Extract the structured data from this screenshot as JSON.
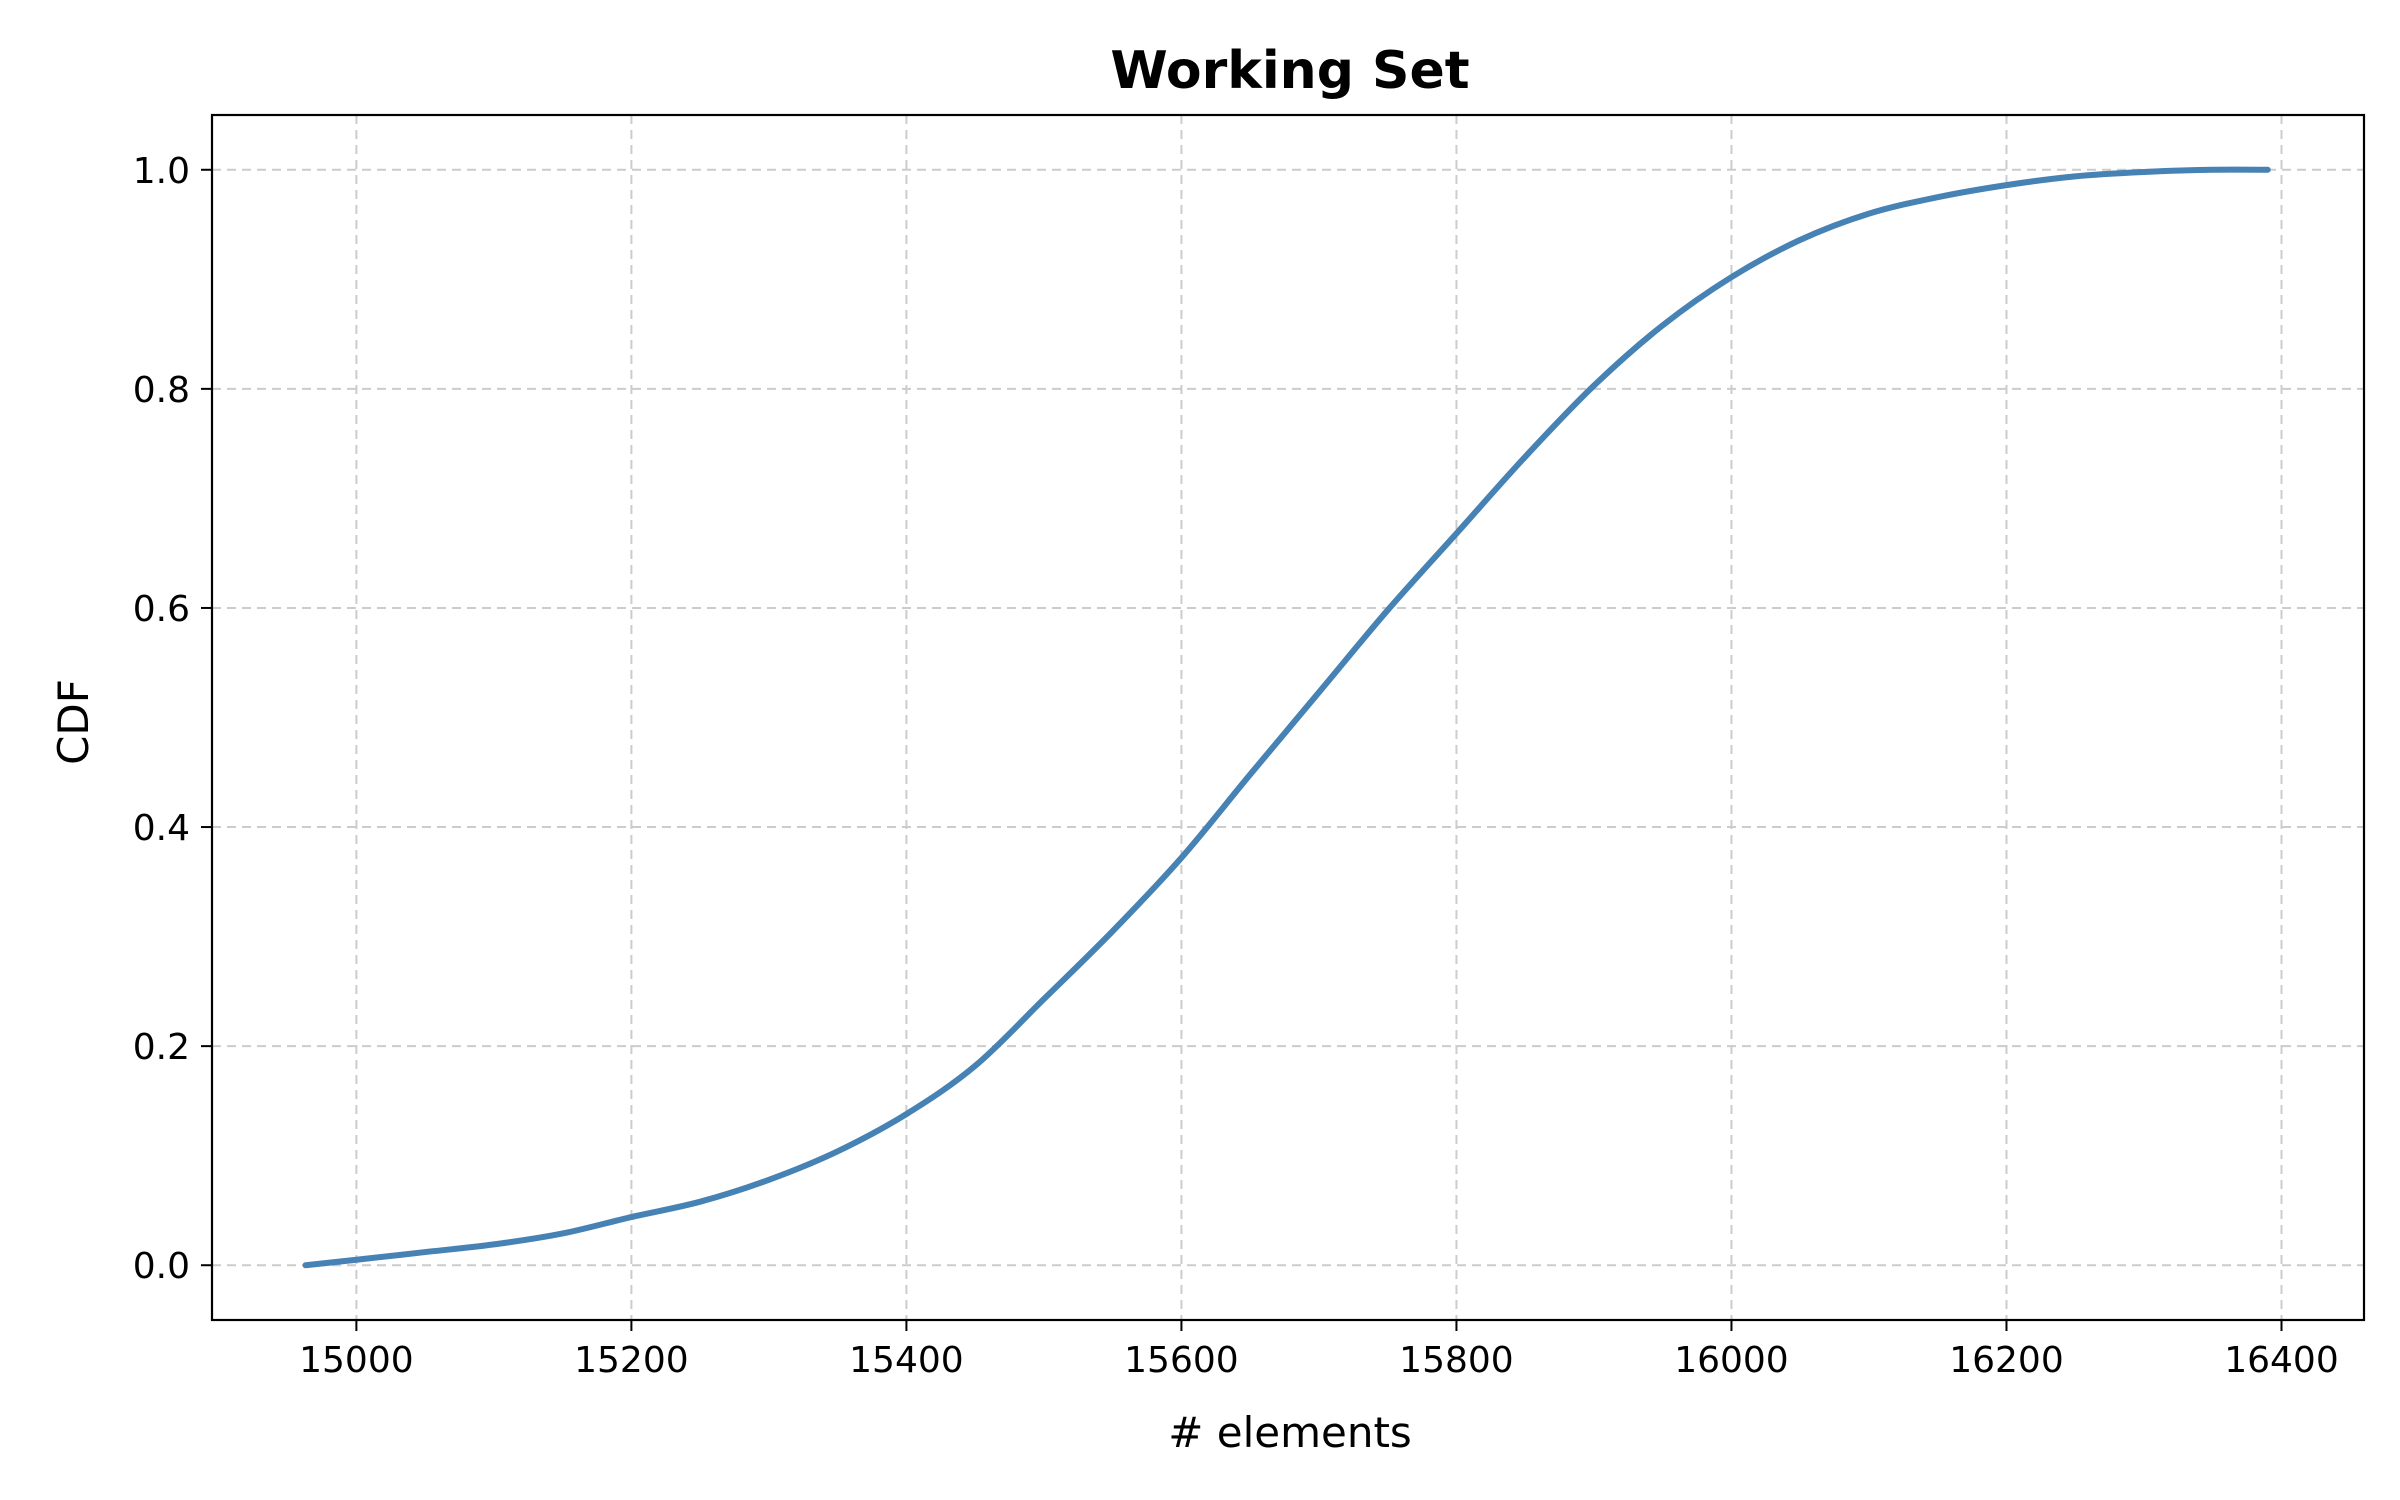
{
  "chart_data": {
    "type": "line",
    "title": "Working Set",
    "xlabel": "# elements",
    "ylabel": "CDF",
    "xlim": [
      14895,
      16460
    ],
    "ylim": [
      -0.05,
      1.05
    ],
    "xticks": [
      15000,
      15200,
      15400,
      15600,
      15800,
      16000,
      16200,
      16400
    ],
    "yticks": [
      0.0,
      0.2,
      0.4,
      0.6,
      0.8,
      1.0
    ],
    "xtick_labels": [
      "15000",
      "15200",
      "15400",
      "15600",
      "15800",
      "16000",
      "16200",
      "16400"
    ],
    "ytick_labels": [
      "0.0",
      "0.2",
      "0.4",
      "0.6",
      "0.8",
      "1.0"
    ],
    "grid": true,
    "series": [
      {
        "color": "#4682b4",
        "x": [
          14963,
          15000,
          15050,
          15100,
          15150,
          15200,
          15250,
          15300,
          15350,
          15400,
          15450,
          15500,
          15550,
          15600,
          15650,
          15700,
          15750,
          15800,
          15850,
          15900,
          15950,
          16000,
          16050,
          16100,
          16150,
          16200,
          16250,
          16300,
          16350,
          16390
        ],
        "y": [
          0.0,
          0.005,
          0.012,
          0.019,
          0.029,
          0.044,
          0.058,
          0.078,
          0.104,
          0.138,
          0.182,
          0.243,
          0.305,
          0.372,
          0.448,
          0.523,
          0.598,
          0.668,
          0.738,
          0.803,
          0.858,
          0.902,
          0.936,
          0.96,
          0.975,
          0.986,
          0.994,
          0.998,
          1.0,
          1.0
        ]
      }
    ]
  }
}
